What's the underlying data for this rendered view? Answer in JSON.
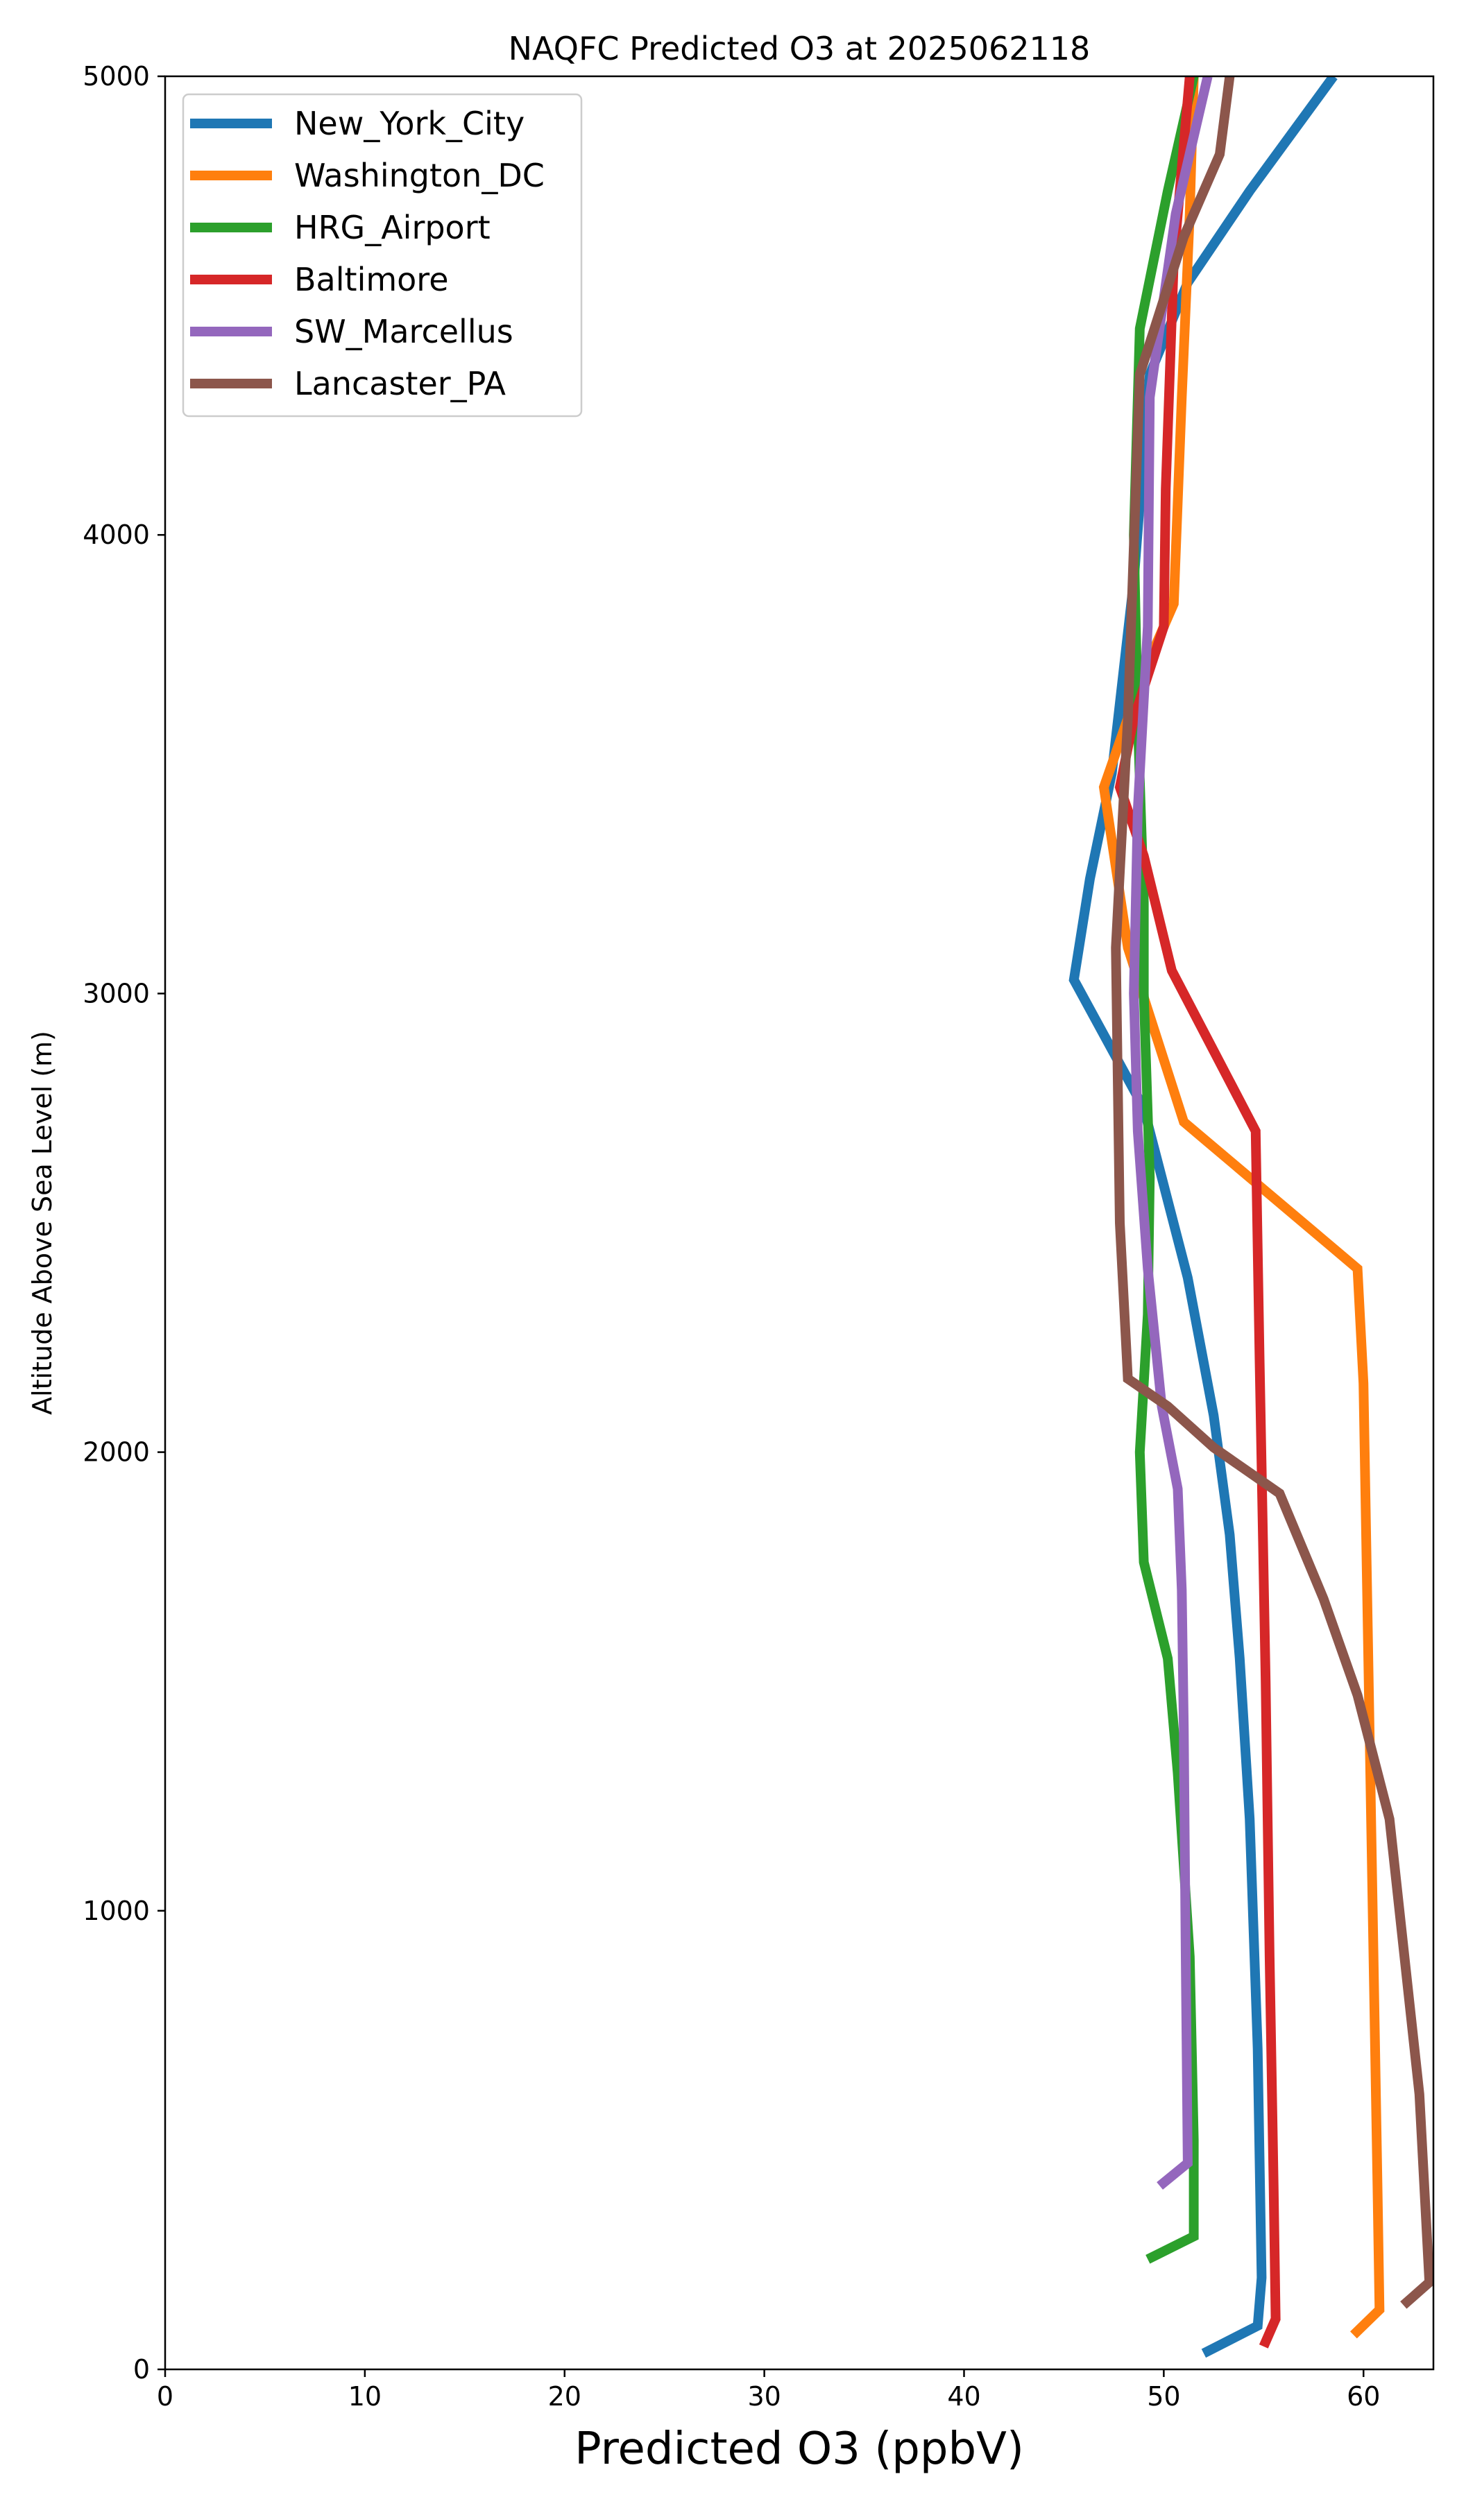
{
  "chart_data": {
    "type": "line",
    "title": "NAQFC Predicted O3 at 2025062118",
    "xlabel": "Predicted O3 (ppbV)",
    "ylabel": "Altitude Above Sea Level (m)",
    "xlim": [
      0,
      63.5
    ],
    "ylim": [
      0,
      5000
    ],
    "xticks": [
      "0",
      "10",
      "20",
      "30",
      "40",
      "50",
      "60"
    ],
    "yticks": [
      "0",
      "1000",
      "2000",
      "3000",
      "4000",
      "5000"
    ],
    "grid": false,
    "legend_position": "upper-left",
    "series": [
      {
        "name": "New_York_City",
        "color": "#1f77b4",
        "points": [
          [
            52.0,
            35
          ],
          [
            54.7,
            95
          ],
          [
            54.9,
            200
          ],
          [
            54.7,
            700
          ],
          [
            54.3,
            1200
          ],
          [
            53.8,
            1550
          ],
          [
            53.3,
            1820
          ],
          [
            52.5,
            2080
          ],
          [
            51.2,
            2380
          ],
          [
            49.0,
            2750
          ],
          [
            45.5,
            3030
          ],
          [
            46.3,
            3250
          ],
          [
            47.4,
            3480
          ],
          [
            48.5,
            3900
          ],
          [
            49.3,
            4350
          ],
          [
            51.2,
            4550
          ],
          [
            54.3,
            4750
          ],
          [
            58.5,
            5000
          ]
        ]
      },
      {
        "name": "Washington_DC",
        "color": "#ff7f0e",
        "points": [
          [
            59.5,
            75
          ],
          [
            60.8,
            130
          ],
          [
            60.7,
            400
          ],
          [
            60.3,
            1400
          ],
          [
            60.0,
            2150
          ],
          [
            59.7,
            2400
          ],
          [
            51.0,
            2720
          ],
          [
            48.2,
            3100
          ],
          [
            47.0,
            3450
          ],
          [
            49.0,
            3700
          ],
          [
            50.5,
            3850
          ],
          [
            50.9,
            4300
          ],
          [
            51.3,
            4700
          ],
          [
            51.5,
            5000
          ]
        ]
      },
      {
        "name": "HRG_Airport",
        "color": "#2ca02c",
        "points": [
          [
            49.2,
            240
          ],
          [
            51.5,
            290
          ],
          [
            51.5,
            500
          ],
          [
            51.3,
            900
          ],
          [
            50.7,
            1300
          ],
          [
            50.2,
            1550
          ],
          [
            49.0,
            1760
          ],
          [
            48.8,
            2000
          ],
          [
            49.2,
            2300
          ],
          [
            49.3,
            2600
          ],
          [
            49.0,
            3000
          ],
          [
            49.0,
            3200
          ],
          [
            48.7,
            3600
          ],
          [
            48.5,
            4000
          ],
          [
            48.8,
            4450
          ],
          [
            50.2,
            4750
          ],
          [
            51.5,
            5000
          ]
        ]
      },
      {
        "name": "Baltimore",
        "color": "#d62728",
        "points": [
          [
            55.0,
            50
          ],
          [
            55.6,
            110
          ],
          [
            55.5,
            400
          ],
          [
            55.3,
            900
          ],
          [
            55.1,
            1500
          ],
          [
            54.8,
            2200
          ],
          [
            54.6,
            2700
          ],
          [
            50.4,
            3050
          ],
          [
            49.0,
            3300
          ],
          [
            47.8,
            3450
          ],
          [
            48.5,
            3600
          ],
          [
            50.0,
            3800
          ],
          [
            50.1,
            4100
          ],
          [
            50.5,
            4600
          ],
          [
            51.3,
            5000
          ]
        ]
      },
      {
        "name": "SW_Marcellus",
        "color": "#9467bd",
        "points": [
          [
            49.8,
            400
          ],
          [
            51.2,
            450
          ],
          [
            51.1,
            900
          ],
          [
            51.0,
            1400
          ],
          [
            50.9,
            1700
          ],
          [
            50.7,
            1920
          ],
          [
            49.9,
            2100
          ],
          [
            49.2,
            2400
          ],
          [
            48.7,
            2700
          ],
          [
            48.5,
            3000
          ],
          [
            48.7,
            3400
          ],
          [
            49.2,
            3800
          ],
          [
            49.3,
            4300
          ],
          [
            50.6,
            4700
          ],
          [
            52.2,
            5000
          ]
        ]
      },
      {
        "name": "Lancaster_PA",
        "color": "#8c564b",
        "points": [
          [
            62.0,
            140
          ],
          [
            63.3,
            190
          ],
          [
            62.8,
            600
          ],
          [
            61.3,
            1200
          ],
          [
            59.7,
            1470
          ],
          [
            58.0,
            1680
          ],
          [
            55.8,
            1910
          ],
          [
            52.5,
            2010
          ],
          [
            50.2,
            2100
          ],
          [
            48.2,
            2160
          ],
          [
            47.8,
            2500
          ],
          [
            47.6,
            3100
          ],
          [
            48.2,
            3600
          ],
          [
            48.8,
            4350
          ],
          [
            51.0,
            4650
          ],
          [
            52.8,
            4830
          ],
          [
            53.3,
            5000
          ]
        ]
      }
    ]
  }
}
